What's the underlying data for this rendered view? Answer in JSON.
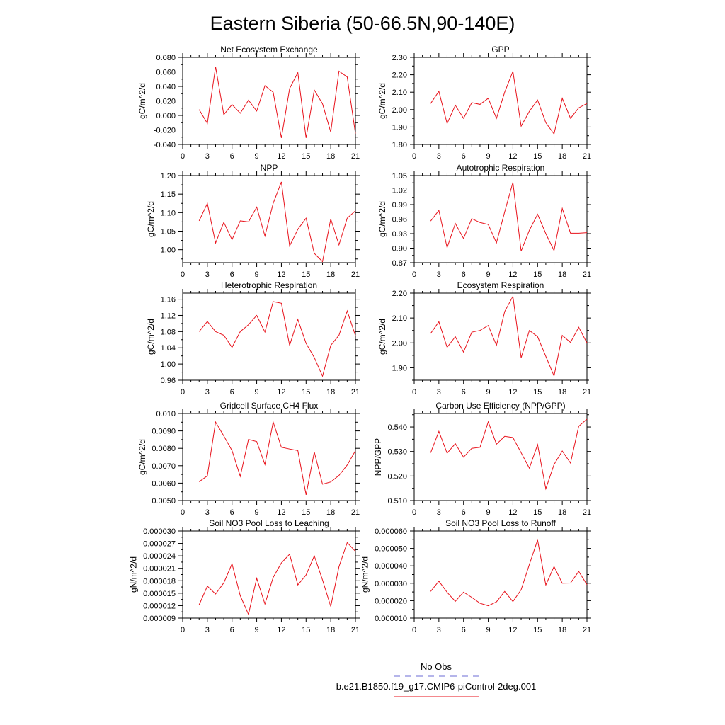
{
  "title": "Eastern Siberia (50-66.5N,90-140E)",
  "colors": {
    "series": "#e8121b",
    "obs": "#6b6bd6",
    "axis": "#000000"
  },
  "legend": {
    "obs_label": "No Obs",
    "run_label": "b.e21.B1850.f19_g17.CMIP6-piControl-2deg.001"
  },
  "chart_data": [
    {
      "type": "line",
      "title": "Net Ecosystem Exchange",
      "ylabel": "gC/m^2/d",
      "xlim": [
        0,
        21
      ],
      "xticks": [
        0,
        3,
        6,
        9,
        12,
        15,
        18,
        21
      ],
      "ylim": [
        -0.04,
        0.08
      ],
      "yticks": [
        "-0.040",
        "-0.020",
        "0.000",
        "0.020",
        "0.040",
        "0.060",
        "0.080"
      ],
      "ytick_values": [
        -0.04,
        -0.02,
        0.0,
        0.02,
        0.04,
        0.06,
        0.08
      ],
      "x": [
        2,
        3,
        4,
        5,
        6,
        7,
        8,
        9,
        10,
        11,
        12,
        13,
        14,
        15,
        16,
        17,
        18,
        19,
        20,
        21
      ],
      "values": [
        0.008,
        -0.011,
        0.067,
        0.001,
        0.015,
        0.003,
        0.021,
        0.006,
        0.041,
        0.032,
        -0.031,
        0.037,
        0.059,
        -0.031,
        0.035,
        0.016,
        -0.023,
        0.061,
        0.053,
        -0.025
      ]
    },
    {
      "type": "line",
      "title": "GPP",
      "ylabel": "gC/m^2/d",
      "xlim": [
        0,
        21
      ],
      "xticks": [
        0,
        3,
        6,
        9,
        12,
        15,
        18,
        21
      ],
      "ylim": [
        1.8,
        2.3
      ],
      "yticks": [
        "1.80",
        "1.90",
        "2.00",
        "2.10",
        "2.20",
        "2.30"
      ],
      "ytick_values": [
        1.8,
        1.9,
        2.0,
        2.1,
        2.2,
        2.3
      ],
      "x": [
        2,
        3,
        4,
        5,
        6,
        7,
        8,
        9,
        10,
        11,
        12,
        13,
        14,
        15,
        16,
        17,
        18,
        19,
        20,
        21
      ],
      "values": [
        2.035,
        2.105,
        1.92,
        2.025,
        1.95,
        2.04,
        2.03,
        2.065,
        1.95,
        2.1,
        2.22,
        1.905,
        1.99,
        2.055,
        1.925,
        1.86,
        2.065,
        1.95,
        2.01,
        2.035
      ]
    },
    {
      "type": "line",
      "title": "NPP",
      "ylabel": "gC/m^2/d",
      "xlim": [
        0,
        21
      ],
      "xticks": [
        0,
        3,
        6,
        9,
        12,
        15,
        18,
        21
      ],
      "ylim": [
        0.965,
        1.2
      ],
      "yticks": [
        "1.00",
        "1.05",
        "1.10",
        "1.15",
        "1.20"
      ],
      "ytick_values": [
        1.0,
        1.05,
        1.1,
        1.15,
        1.2
      ],
      "x": [
        2,
        3,
        4,
        5,
        6,
        7,
        8,
        9,
        10,
        11,
        12,
        13,
        14,
        15,
        16,
        17,
        18,
        19,
        20,
        21
      ],
      "values": [
        1.078,
        1.125,
        1.018,
        1.074,
        1.027,
        1.078,
        1.075,
        1.115,
        1.037,
        1.125,
        1.183,
        1.01,
        1.055,
        1.085,
        0.99,
        0.968,
        1.083,
        1.013,
        1.085,
        1.105
      ]
    },
    {
      "type": "line",
      "title": "Autotrophic Respiration",
      "ylabel": "gC/m^2/d",
      "xlim": [
        0,
        21
      ],
      "xticks": [
        0,
        3,
        6,
        9,
        12,
        15,
        18,
        21
      ],
      "ylim": [
        0.87,
        1.05
      ],
      "yticks": [
        "0.87",
        "0.90",
        "0.93",
        "0.96",
        "0.99",
        "1.02",
        "1.05"
      ],
      "ytick_values": [
        0.87,
        0.9,
        0.93,
        0.96,
        0.99,
        1.02,
        1.05
      ],
      "x": [
        2,
        3,
        4,
        5,
        6,
        7,
        8,
        9,
        10,
        11,
        12,
        13,
        14,
        15,
        16,
        17,
        18,
        19,
        20,
        21
      ],
      "values": [
        0.956,
        0.978,
        0.901,
        0.951,
        0.92,
        0.961,
        0.953,
        0.949,
        0.911,
        0.975,
        1.036,
        0.894,
        0.937,
        0.97,
        0.93,
        0.895,
        0.982,
        0.931,
        0.931,
        0.932
      ]
    },
    {
      "type": "line",
      "title": "Heterotrophic Respiration",
      "ylabel": "gC/m^2/d",
      "xlim": [
        0,
        21
      ],
      "xticks": [
        0,
        3,
        6,
        9,
        12,
        15,
        18,
        21
      ],
      "ylim": [
        0.96,
        1.175
      ],
      "yticks": [
        "0.96",
        "1.00",
        "1.04",
        "1.08",
        "1.12",
        "1.16"
      ],
      "ytick_values": [
        0.96,
        1.0,
        1.04,
        1.08,
        1.12,
        1.16
      ],
      "x": [
        2,
        3,
        4,
        5,
        6,
        7,
        8,
        9,
        10,
        11,
        12,
        13,
        14,
        15,
        16,
        17,
        18,
        19,
        20,
        21
      ],
      "values": [
        1.08,
        1.105,
        1.08,
        1.071,
        1.041,
        1.08,
        1.097,
        1.12,
        1.079,
        1.154,
        1.15,
        1.046,
        1.11,
        1.051,
        1.016,
        0.97,
        1.046,
        1.071,
        1.131,
        1.07
      ]
    },
    {
      "type": "line",
      "title": "Ecosystem Respiration",
      "ylabel": "gC/m^2/d",
      "xlim": [
        0,
        21
      ],
      "xticks": [
        0,
        3,
        6,
        9,
        12,
        15,
        18,
        21
      ],
      "ylim": [
        1.85,
        2.2
      ],
      "yticks": [
        "1.90",
        "2.00",
        "2.10",
        "2.20"
      ],
      "ytick_values": [
        1.9,
        2.0,
        2.1,
        2.2
      ],
      "x": [
        2,
        3,
        4,
        5,
        6,
        7,
        8,
        9,
        10,
        11,
        12,
        13,
        14,
        15,
        16,
        17,
        18,
        19,
        20,
        21
      ],
      "values": [
        2.038,
        2.085,
        1.982,
        2.025,
        1.963,
        2.043,
        2.05,
        2.07,
        1.99,
        2.126,
        2.187,
        1.94,
        2.05,
        2.025,
        1.946,
        1.867,
        2.03,
        2.002,
        2.063,
        2.0
      ]
    },
    {
      "type": "line",
      "title": "Gridcell Surface CH4 Flux",
      "ylabel": "gC/m^2/d",
      "xlim": [
        0,
        21
      ],
      "xticks": [
        0,
        3,
        6,
        9,
        12,
        15,
        18,
        21
      ],
      "ylim": [
        0.005,
        0.01
      ],
      "yticks": [
        "0.0050",
        "0.0060",
        "0.0070",
        "0.0080",
        "0.0090",
        "0.010"
      ],
      "ytick_values": [
        0.005,
        0.006,
        0.007,
        0.008,
        0.009,
        0.01
      ],
      "x": [
        2,
        3,
        4,
        5,
        6,
        7,
        8,
        9,
        10,
        11,
        12,
        13,
        14,
        15,
        16,
        17,
        18,
        19,
        20,
        21
      ],
      "values": [
        0.00608,
        0.00642,
        0.00951,
        0.00871,
        0.00787,
        0.00639,
        0.00851,
        0.00839,
        0.00707,
        0.00951,
        0.00806,
        0.00796,
        0.00787,
        0.00533,
        0.00779,
        0.00594,
        0.00607,
        0.00644,
        0.00704,
        0.00786
      ]
    },
    {
      "type": "line",
      "title": "Carbon Use Efficiency (NPP/GPP)",
      "ylabel": "NPP/GPP",
      "xlim": [
        0,
        21
      ],
      "xticks": [
        0,
        3,
        6,
        9,
        12,
        15,
        18,
        21
      ],
      "ylim": [
        0.51,
        0.5455
      ],
      "yticks": [
        "0.510",
        "0.520",
        "0.530",
        "0.540"
      ],
      "ytick_values": [
        0.51,
        0.52,
        0.53,
        0.54
      ],
      "x": [
        2,
        3,
        4,
        5,
        6,
        7,
        8,
        9,
        10,
        11,
        12,
        13,
        14,
        15,
        16,
        17,
        18,
        19,
        20,
        21
      ],
      "values": [
        0.5295,
        0.5382,
        0.5293,
        0.5332,
        0.5277,
        0.5313,
        0.5317,
        0.5421,
        0.533,
        0.5362,
        0.5357,
        0.5295,
        0.5232,
        0.5328,
        0.5148,
        0.5247,
        0.5302,
        0.5253,
        0.5403,
        0.5432
      ]
    },
    {
      "type": "line",
      "title": "Soil NO3 Pool Loss to Leaching",
      "ylabel": "gN/m^2/d",
      "xlim": [
        0,
        21
      ],
      "xticks": [
        0,
        3,
        6,
        9,
        12,
        15,
        18,
        21
      ],
      "ylim": [
        9e-06,
        3e-05
      ],
      "yticks": [
        "0.000009",
        "0.000012",
        "0.000015",
        "0.000018",
        "0.000021",
        "0.000024",
        "0.000027",
        "0.000030"
      ],
      "ytick_values": [
        9e-06,
        1.2e-05,
        1.5e-05,
        1.8e-05,
        2.1e-05,
        2.4e-05,
        2.7e-05,
        3e-05
      ],
      "x": [
        2,
        3,
        4,
        5,
        6,
        7,
        8,
        9,
        10,
        11,
        12,
        13,
        14,
        15,
        16,
        17,
        18,
        19,
        20,
        21
      ],
      "values": [
        1.22e-05,
        1.67e-05,
        1.48e-05,
        1.75e-05,
        2.21e-05,
        1.44e-05,
        9.9e-06,
        1.86e-05,
        1.24e-05,
        1.88e-05,
        2.23e-05,
        2.44e-05,
        1.7e-05,
        1.94e-05,
        2.4e-05,
        1.82e-05,
        1.18e-05,
        2.14e-05,
        2.72e-05,
        2.51e-05
      ]
    },
    {
      "type": "line",
      "title": "Soil NO3 Pool Loss to Runoff",
      "ylabel": "gN/m^2/d",
      "xlim": [
        0,
        21
      ],
      "xticks": [
        0,
        3,
        6,
        9,
        12,
        15,
        18,
        21
      ],
      "ylim": [
        1e-05,
        6e-05
      ],
      "yticks": [
        "0.000010",
        "0.000020",
        "0.000030",
        "0.000040",
        "0.000050",
        "0.000060"
      ],
      "ytick_values": [
        1e-05,
        2e-05,
        3e-05,
        4e-05,
        5e-05,
        6e-05
      ],
      "x": [
        2,
        3,
        4,
        5,
        6,
        7,
        8,
        9,
        10,
        11,
        12,
        13,
        14,
        15,
        16,
        17,
        18,
        19,
        20,
        21
      ],
      "values": [
        2.53e-05,
        3.12e-05,
        2.48e-05,
        1.96e-05,
        2.49e-05,
        2.19e-05,
        1.85e-05,
        1.71e-05,
        1.93e-05,
        2.53e-05,
        1.95e-05,
        2.63e-05,
        4.08e-05,
        5.48e-05,
        2.9e-05,
        3.96e-05,
        3e-05,
        3.01e-05,
        3.68e-05,
        2.92e-05
      ]
    }
  ]
}
